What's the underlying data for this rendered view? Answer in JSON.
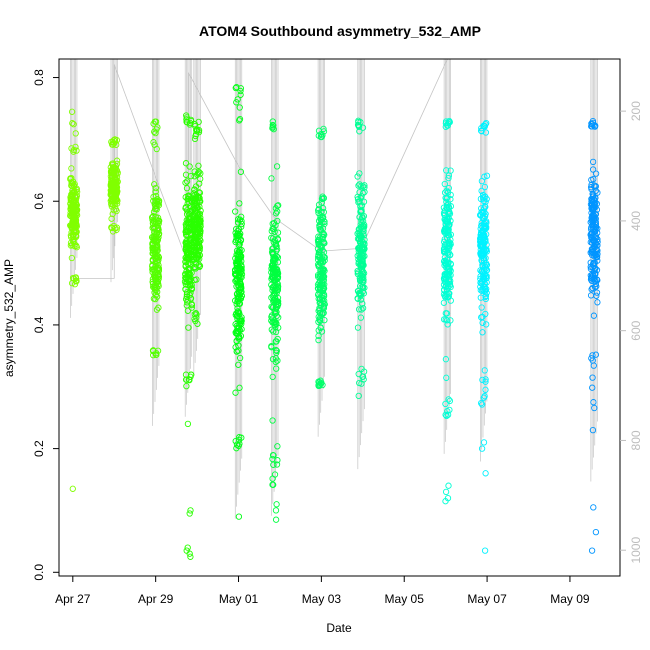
{
  "chart_data": {
    "type": "scatter",
    "title": "ATOM4 Southbound asymmetry_532_AMP",
    "xlabel": "Date",
    "ylabel": "asymmetry_532_AMP",
    "x_axis": {
      "type": "date",
      "ticks": [
        {
          "date": "2019-04-27",
          "label": "Apr 27"
        },
        {
          "date": "2019-04-29",
          "label": "Apr 29"
        },
        {
          "date": "2019-05-01",
          "label": "May 01"
        },
        {
          "date": "2019-05-03",
          "label": "May 03"
        },
        {
          "date": "2019-05-05",
          "label": "May 05"
        },
        {
          "date": "2019-05-07",
          "label": "May 07"
        },
        {
          "date": "2019-05-09",
          "label": "May 09"
        }
      ],
      "xlim": [
        "2019-04-26T16:00",
        "2019-05-10T05:00"
      ]
    },
    "y_axis": {
      "ticks": [
        0.0,
        0.2,
        0.4,
        0.6,
        0.8
      ],
      "tick_labels": [
        "0.0",
        "0.2",
        "0.4",
        "0.6",
        "0.8"
      ],
      "ylim": [
        -0.006,
        0.83
      ]
    },
    "y2_axis": {
      "color": "#bdbdbd",
      "ticks": [
        200,
        400,
        600,
        800,
        1000
      ],
      "tick_labels": [
        "200",
        "400",
        "600",
        "800",
        "1000"
      ],
      "ylim": [
        1047,
        105
      ]
    },
    "grid": false,
    "legend": "none",
    "series": [
      {
        "time": "2019-04-27T00:30",
        "color": "#80ff00",
        "core": [
          0.48,
          0.68
        ],
        "ext": [
          0.46,
          0.75
        ],
        "outliers": [
          0.135
        ]
      },
      {
        "time": "2019-04-28T00:00",
        "color": "#80ff00",
        "core": [
          0.56,
          0.69
        ],
        "ext": [
          0.55,
          0.7
        ],
        "outliers": []
      },
      {
        "time": "2019-04-29T00:00",
        "color": "#55ff00",
        "core": [
          0.36,
          0.68
        ],
        "ext": [
          0.35,
          0.73
        ],
        "outliers": []
      },
      {
        "time": "2019-04-29T19:00",
        "color": "#2aff00",
        "core": [
          0.32,
          0.72
        ],
        "ext": [
          0.3,
          0.74
        ],
        "outliers": [
          0.24,
          0.1,
          0.095,
          0.04,
          0.035,
          0.03,
          0.025
        ]
      },
      {
        "time": "2019-04-30T00:00",
        "color": "#2aff00",
        "core": [
          0.42,
          0.7
        ],
        "ext": [
          0.4,
          0.73
        ],
        "outliers": []
      },
      {
        "time": "2019-05-01T00:00",
        "color": "#00ff15",
        "core": [
          0.22,
          0.72
        ],
        "ext": [
          0.2,
          0.79
        ],
        "outliers": [
          0.09
        ]
      },
      {
        "time": "2019-05-01T21:00",
        "color": "#00ff40",
        "core": [
          0.25,
          0.7
        ],
        "ext": [
          0.14,
          0.73
        ],
        "outliers": [
          0.11,
          0.1,
          0.085
        ]
      },
      {
        "time": "2019-05-03T00:00",
        "color": "#00ff6a",
        "core": [
          0.31,
          0.69
        ],
        "ext": [
          0.3,
          0.72
        ],
        "outliers": []
      },
      {
        "time": "2019-05-03T23:00",
        "color": "#00ff95",
        "core": [
          0.33,
          0.71
        ],
        "ext": [
          0.28,
          0.73
        ],
        "outliers": []
      },
      {
        "time": "2019-05-06T01:00",
        "color": "#00ffd5",
        "core": [
          0.32,
          0.72
        ],
        "ext": [
          0.24,
          0.73
        ],
        "outliers": [
          0.14,
          0.13,
          0.12,
          0.115
        ]
      },
      {
        "time": "2019-05-06T22:00",
        "color": "#00f2ff",
        "core": [
          0.33,
          0.71
        ],
        "ext": [
          0.26,
          0.73
        ],
        "outliers": [
          0.21,
          0.2,
          0.16,
          0.035
        ]
      },
      {
        "time": "2019-05-09T14:00",
        "color": "#0095ff",
        "core": [
          0.37,
          0.72
        ],
        "ext": [
          0.26,
          0.73
        ],
        "outliers": [
          0.23,
          0.105,
          0.065,
          0.035
        ]
      }
    ]
  }
}
